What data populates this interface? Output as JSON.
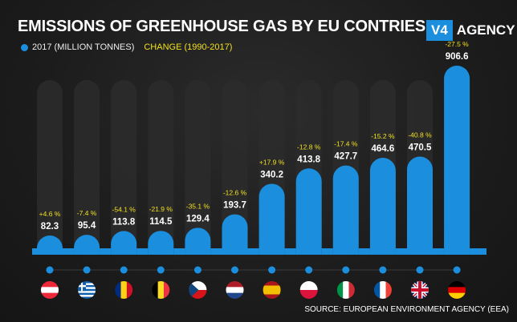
{
  "header": {
    "title": "EMISSIONS OF GREENHOUSE GAS BY EU CONTRIES",
    "legend_2017": "2017 (MILLION TONNES)",
    "legend_change": "CHANGE (1990-2017)"
  },
  "logo": {
    "mark": "V4",
    "name": "AGENCY"
  },
  "source": "SOURCE: EUROPEAN ENVIRONMENT AGENCY (EEA)",
  "colors": {
    "bar": "#1b8fde",
    "ghost": "#2c2c2c",
    "change": "#f2e01d",
    "value": "#ffffff"
  },
  "chart_data": {
    "type": "bar",
    "categories": [
      "Austria",
      "Greece",
      "Romania",
      "Belgium",
      "Czechia",
      "Netherlands",
      "Spain",
      "Poland",
      "Italy",
      "France",
      "United Kingdom",
      "Germany"
    ],
    "flag_icons": [
      "austria-flag-icon",
      "greece-flag-icon",
      "romania-flag-icon",
      "belgium-flag-icon",
      "czechia-flag-icon",
      "netherlands-flag-icon",
      "spain-flag-icon",
      "poland-flag-icon",
      "italy-flag-icon",
      "france-flag-icon",
      "uk-flag-icon",
      "germany-flag-icon"
    ],
    "series": [
      {
        "name": "2017 (MILLION TONNES)",
        "values": [
          82.3,
          95.4,
          113.8,
          114.5,
          129.4,
          193.7,
          340.2,
          413.8,
          427.7,
          464.6,
          470.5,
          906.6
        ],
        "labels": [
          "82.3",
          "95.4",
          "113.8",
          "114.5",
          "129.4",
          "193.7",
          "340.2",
          "413.8",
          "427.7",
          "464.6",
          "470.5",
          "906.6"
        ]
      },
      {
        "name": "CHANGE (1990-2017)",
        "labels": [
          "+4.6 %",
          "-7.4 %",
          "-54.1 %",
          "-21.9 %",
          "-35.1 %",
          "-12.6 %",
          "+17.9 %",
          "-12.8 %",
          "-17.4 %",
          "-15.2 %",
          "-40.8 %",
          "-27.5 %"
        ]
      }
    ],
    "ylim": [
      0,
      906.6
    ]
  }
}
